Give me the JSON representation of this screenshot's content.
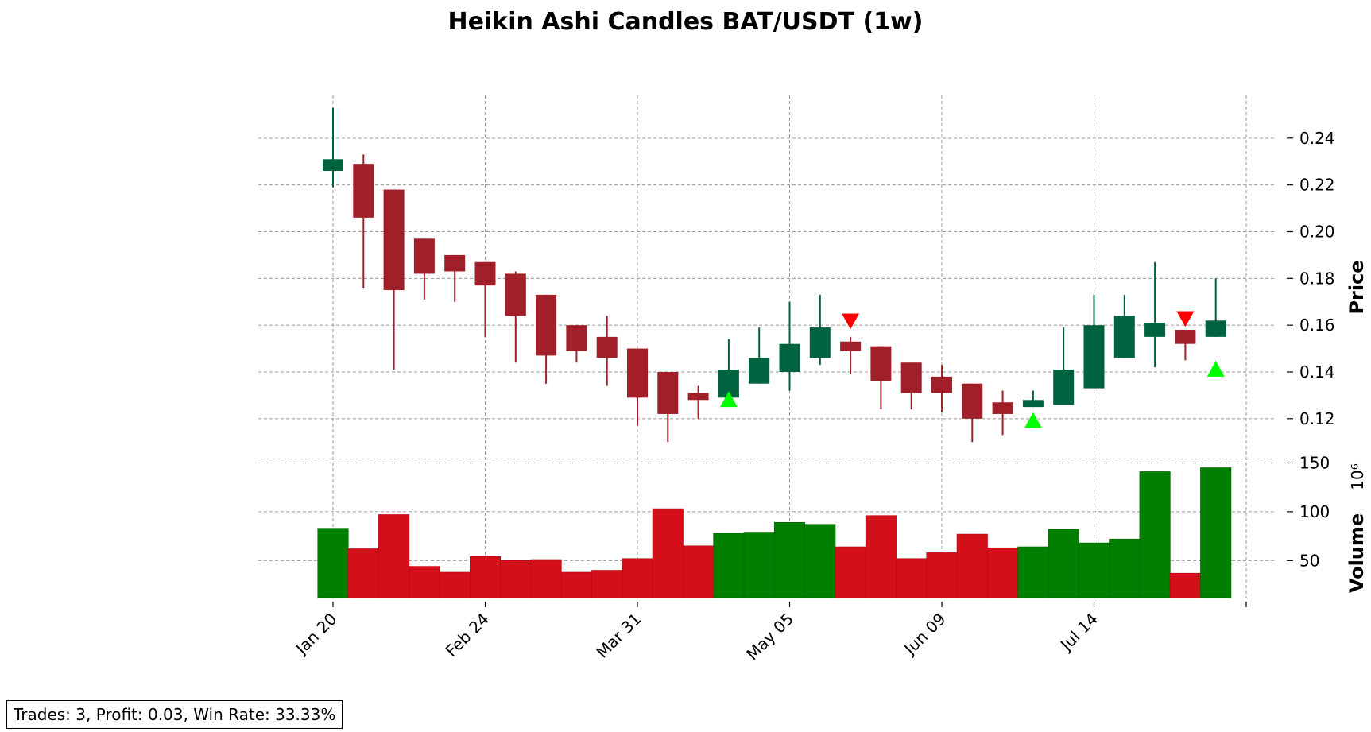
{
  "chart_data": {
    "type": "candlestick",
    "title": "Heikin Ashi Candles BAT/USDT (1w)",
    "price_axis": {
      "label": "Price",
      "ylim": [
        0.106,
        0.26
      ],
      "ticks": [
        0.12,
        0.14,
        0.16,
        0.18,
        0.2,
        0.22,
        0.24
      ],
      "tick_labels": [
        "0.12",
        "0.14",
        "0.16",
        "0.18",
        "0.20",
        "0.22",
        "0.24"
      ]
    },
    "volume_axis": {
      "label": "Volume",
      "multiplier_label": "10⁶",
      "ylim": [
        12,
        152
      ],
      "ticks": [
        50,
        100,
        150
      ],
      "tick_labels": [
        "50",
        "100",
        "150"
      ]
    },
    "x_tick_labels": [
      {
        "index": 0,
        "label": "Jan 20"
      },
      {
        "index": 5,
        "label": "Feb 24"
      },
      {
        "index": 10,
        "label": "Mar 31"
      },
      {
        "index": 15,
        "label": "May 05"
      },
      {
        "index": 20,
        "label": "Jun 09"
      },
      {
        "index": 25,
        "label": "Jul 14"
      }
    ],
    "grid": true,
    "colors": {
      "up": "#006340",
      "down": "#a01f28",
      "vol_up": "#007f00",
      "vol_down": "#d40f19",
      "buy": "#00ff00",
      "sell": "#ff0000"
    },
    "candles": [
      {
        "open": 0.226,
        "high": 0.253,
        "low": 0.219,
        "close": 0.231,
        "volume": 83
      },
      {
        "open": 0.229,
        "high": 0.233,
        "low": 0.176,
        "close": 0.206,
        "volume": 62
      },
      {
        "open": 0.218,
        "high": 0.218,
        "low": 0.141,
        "close": 0.175,
        "volume": 97
      },
      {
        "open": 0.197,
        "high": 0.197,
        "low": 0.171,
        "close": 0.182,
        "volume": 44
      },
      {
        "open": 0.19,
        "high": 0.19,
        "low": 0.17,
        "close": 0.183,
        "volume": 38
      },
      {
        "open": 0.187,
        "high": 0.187,
        "low": 0.155,
        "close": 0.177,
        "volume": 54
      },
      {
        "open": 0.182,
        "high": 0.183,
        "low": 0.144,
        "close": 0.164,
        "volume": 50
      },
      {
        "open": 0.173,
        "high": 0.173,
        "low": 0.135,
        "close": 0.147,
        "volume": 51
      },
      {
        "open": 0.16,
        "high": 0.16,
        "low": 0.144,
        "close": 0.149,
        "volume": 38
      },
      {
        "open": 0.155,
        "high": 0.164,
        "low": 0.134,
        "close": 0.146,
        "volume": 40
      },
      {
        "open": 0.15,
        "high": 0.15,
        "low": 0.117,
        "close": 0.129,
        "volume": 52
      },
      {
        "open": 0.14,
        "high": 0.14,
        "low": 0.11,
        "close": 0.122,
        "volume": 103
      },
      {
        "open": 0.131,
        "high": 0.134,
        "low": 0.12,
        "close": 0.128,
        "volume": 65
      },
      {
        "open": 0.129,
        "high": 0.154,
        "low": 0.129,
        "close": 0.141,
        "volume": 78
      },
      {
        "open": 0.135,
        "high": 0.159,
        "low": 0.135,
        "close": 0.146,
        "volume": 79
      },
      {
        "open": 0.14,
        "high": 0.17,
        "low": 0.132,
        "close": 0.152,
        "volume": 89
      },
      {
        "open": 0.146,
        "high": 0.173,
        "low": 0.143,
        "close": 0.159,
        "volume": 87
      },
      {
        "open": 0.153,
        "high": 0.155,
        "low": 0.139,
        "close": 0.149,
        "volume": 64
      },
      {
        "open": 0.151,
        "high": 0.151,
        "low": 0.124,
        "close": 0.136,
        "volume": 96
      },
      {
        "open": 0.144,
        "high": 0.144,
        "low": 0.124,
        "close": 0.131,
        "volume": 52
      },
      {
        "open": 0.138,
        "high": 0.143,
        "low": 0.123,
        "close": 0.131,
        "volume": 58
      },
      {
        "open": 0.135,
        "high": 0.135,
        "low": 0.11,
        "close": 0.12,
        "volume": 77
      },
      {
        "open": 0.127,
        "high": 0.132,
        "low": 0.113,
        "close": 0.122,
        "volume": 63
      },
      {
        "open": 0.125,
        "high": 0.132,
        "low": 0.125,
        "close": 0.128,
        "volume": 64
      },
      {
        "open": 0.126,
        "high": 0.159,
        "low": 0.126,
        "close": 0.141,
        "volume": 82
      },
      {
        "open": 0.133,
        "high": 0.173,
        "low": 0.133,
        "close": 0.16,
        "volume": 68
      },
      {
        "open": 0.146,
        "high": 0.173,
        "low": 0.146,
        "close": 0.164,
        "volume": 72
      },
      {
        "open": 0.155,
        "high": 0.187,
        "low": 0.142,
        "close": 0.161,
        "volume": 141
      },
      {
        "open": 0.158,
        "high": 0.158,
        "low": 0.145,
        "close": 0.152,
        "volume": 37
      },
      {
        "open": 0.155,
        "high": 0.18,
        "low": 0.155,
        "close": 0.162,
        "volume": 145
      }
    ],
    "signals": [
      {
        "index": 13,
        "type": "buy",
        "price": 0.128
      },
      {
        "index": 17,
        "type": "sell",
        "price": 0.162
      },
      {
        "index": 23,
        "type": "buy",
        "price": 0.119
      },
      {
        "index": 28,
        "type": "sell",
        "price": 0.163
      },
      {
        "index": 29,
        "type": "buy",
        "price": 0.141
      }
    ]
  },
  "stats_text": "Trades: 3, Profit: 0.03, Win Rate: 33.33%"
}
